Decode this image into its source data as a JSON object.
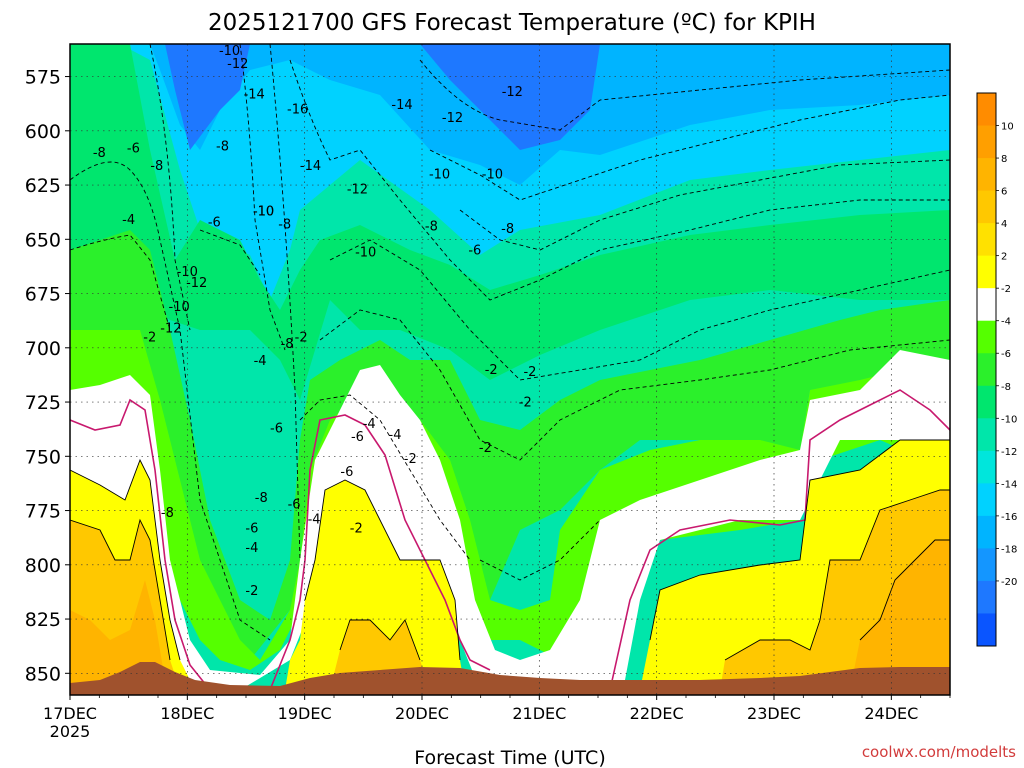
{
  "chart_data": {
    "type": "heatmap",
    "title": "2025121700 GFS Forecast Temperature (ºC) for KPIH",
    "xlabel": "Forecast Time (UTC)",
    "ylabel": "",
    "credit": "coolwx.com/modelts",
    "x_ticks": [
      "17DEC",
      "18DEC",
      "19DEC",
      "20DEC",
      "21DEC",
      "22DEC",
      "23DEC",
      "24DEC"
    ],
    "x_tick_year": "2025",
    "x_range_days": [
      0,
      7.5
    ],
    "y_ticks": [
      575,
      600,
      625,
      650,
      675,
      700,
      725,
      750,
      775,
      800,
      825,
      850
    ],
    "y_range_hpa": [
      560,
      860
    ],
    "colorbar_ticks": [
      10,
      8,
      6,
      4,
      2,
      -2,
      -4,
      -6,
      -8,
      -10,
      -12,
      -14,
      -16,
      -18,
      -20
    ],
    "colorbar_levels": [
      12,
      10,
      8,
      6,
      4,
      2,
      -2,
      -4,
      -6,
      -8,
      -10,
      -12,
      -14,
      -16,
      -18,
      -20,
      -22
    ],
    "colorbar_colors": [
      "#ff8c00",
      "#ff9f00",
      "#ffb400",
      "#ffc800",
      "#ffe100",
      "#ffff00",
      "#ffffff",
      "#55ff00",
      "#2bf02b",
      "#00e66e",
      "#00e6aa",
      "#00e6dc",
      "#00d2ff",
      "#00b4ff",
      "#1496ff",
      "#1e78ff",
      "#0a55ff"
    ],
    "contour_labels": [
      {
        "t": 1.36,
        "p": 565,
        "v": "-10"
      },
      {
        "t": 1.43,
        "p": 571,
        "v": "-12"
      },
      {
        "t": 1.57,
        "p": 585,
        "v": "-14"
      },
      {
        "t": 1.94,
        "p": 592,
        "v": "-16"
      },
      {
        "t": 2.05,
        "p": 618,
        "v": "-14"
      },
      {
        "t": 2.45,
        "p": 629,
        "v": "-12"
      },
      {
        "t": 2.83,
        "p": 590,
        "v": "-14"
      },
      {
        "t": 3.26,
        "p": 596,
        "v": "-12"
      },
      {
        "t": 3.15,
        "p": 622,
        "v": "-10"
      },
      {
        "t": 3.77,
        "p": 584,
        "v": "-12"
      },
      {
        "t": 3.6,
        "p": 622,
        "v": "-10"
      },
      {
        "t": 0.25,
        "p": 612,
        "v": "-8"
      },
      {
        "t": 0.54,
        "p": 610,
        "v": "-6"
      },
      {
        "t": 0.74,
        "p": 618,
        "v": "-8"
      },
      {
        "t": 1.3,
        "p": 609,
        "v": "-8"
      },
      {
        "t": 0.5,
        "p": 643,
        "v": "-4"
      },
      {
        "t": 1.65,
        "p": 639,
        "v": "-10"
      },
      {
        "t": 1.83,
        "p": 645,
        "v": "-8"
      },
      {
        "t": 3.08,
        "p": 646,
        "v": "-8"
      },
      {
        "t": 3.73,
        "p": 647,
        "v": "-8"
      },
      {
        "t": 2.52,
        "p": 658,
        "v": "-10"
      },
      {
        "t": 3.45,
        "p": 657,
        "v": "-6"
      },
      {
        "t": 1.23,
        "p": 644,
        "v": "-6"
      },
      {
        "t": 1.65,
        "p": 639,
        "v": "-10"
      },
      {
        "t": 0.93,
        "p": 683,
        "v": "-10"
      },
      {
        "t": 1.85,
        "p": 700,
        "v": "-8"
      },
      {
        "t": 0.86,
        "p": 693,
        "v": "-12"
      },
      {
        "t": 0.68,
        "p": 697,
        "v": "-2"
      },
      {
        "t": 1.76,
        "p": 739,
        "v": "-6"
      },
      {
        "t": 2.45,
        "p": 743,
        "v": "-6"
      },
      {
        "t": 2.55,
        "p": 737,
        "v": "-4"
      },
      {
        "t": 2.77,
        "p": 742,
        "v": "-4"
      },
      {
        "t": 3.54,
        "p": 748,
        "v": "-2"
      },
      {
        "t": 3.59,
        "p": 712,
        "v": "-2"
      },
      {
        "t": 3.88,
        "p": 727,
        "v": "-2"
      },
      {
        "t": 3.92,
        "p": 713,
        "v": "-2"
      },
      {
        "t": 1.97,
        "p": 697,
        "v": "-2"
      },
      {
        "t": 1.62,
        "p": 708,
        "v": "-4"
      },
      {
        "t": 1.0,
        "p": 667,
        "v": "-10"
      },
      {
        "t": 1.08,
        "p": 672,
        "v": "-12"
      },
      {
        "t": 0.83,
        "p": 778,
        "v": "-8"
      },
      {
        "t": 1.55,
        "p": 785,
        "v": "-6"
      },
      {
        "t": 1.55,
        "p": 794,
        "v": "-4"
      },
      {
        "t": 1.55,
        "p": 814,
        "v": "-2"
      },
      {
        "t": 2.44,
        "p": 785,
        "v": "-2"
      },
      {
        "t": 2.08,
        "p": 781,
        "v": "-4"
      },
      {
        "t": 1.91,
        "p": 774,
        "v": "-6"
      },
      {
        "t": 2.9,
        "p": 753,
        "v": "-2"
      },
      {
        "t": 2.36,
        "p": 759,
        "v": "-6"
      },
      {
        "t": 1.63,
        "p": 771,
        "v": "-8"
      }
    ],
    "surface": "terrain shown in brown along the bottom"
  }
}
